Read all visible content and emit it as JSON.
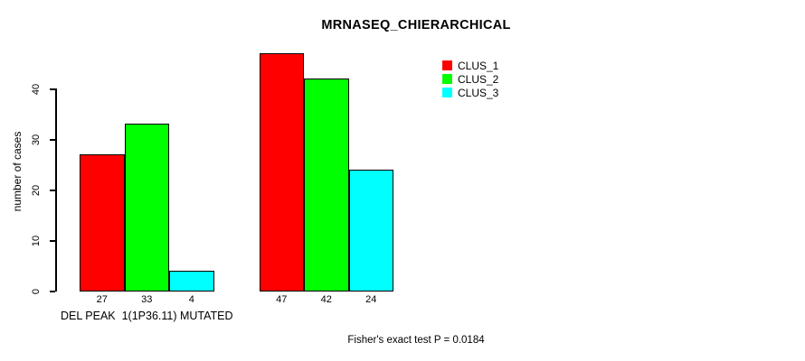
{
  "title": "MRNASEQ_CHIERARCHICAL",
  "y_axis": {
    "label": "number of cases",
    "ticks": [
      0,
      10,
      20,
      30,
      40
    ]
  },
  "legend": {
    "items": [
      {
        "label": "CLUS_1",
        "color": "#ff0000"
      },
      {
        "label": "CLUS_2",
        "color": "#00ff00"
      },
      {
        "label": "CLUS_3",
        "color": "#00ffff"
      }
    ]
  },
  "footer": "Fisher's exact test P = 0.0184",
  "chart_data": {
    "type": "bar",
    "title": "MRNASEQ_CHIERARCHICAL",
    "xlabel": "",
    "ylabel": "number of cases",
    "ylim": [
      0,
      47
    ],
    "yticks": [
      0,
      10,
      20,
      30,
      40
    ],
    "grid": false,
    "legend_position": "top-right",
    "bar_value_labels": true,
    "categories": [
      "DEL PEAK  1(1P36.11) MUTATED",
      ""
    ],
    "series": [
      {
        "name": "CLUS_1",
        "color": "#ff0000",
        "values": [
          27,
          47
        ]
      },
      {
        "name": "CLUS_2",
        "color": "#00ff00",
        "values": [
          33,
          42
        ]
      },
      {
        "name": "CLUS_3",
        "color": "#00ffff",
        "values": [
          4,
          24
        ]
      }
    ],
    "annotation": "Fisher's exact test P = 0.0184"
  }
}
